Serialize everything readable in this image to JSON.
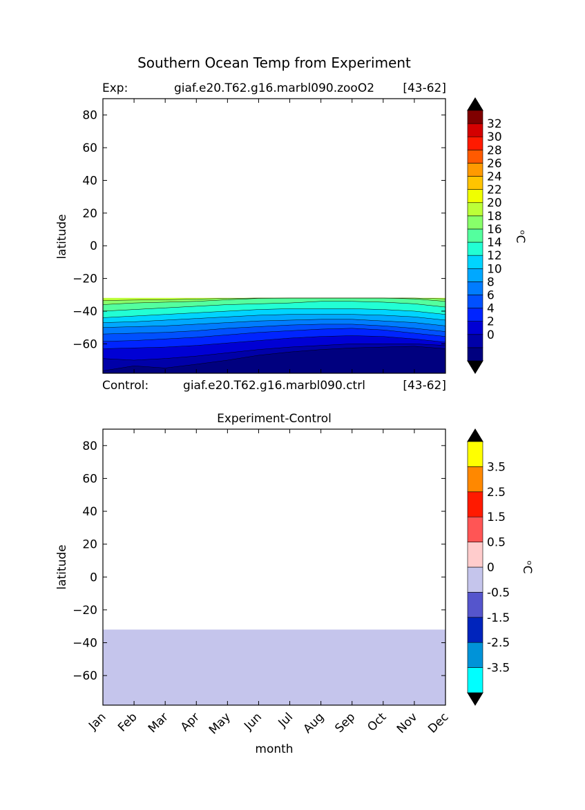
{
  "figure": {
    "title": "Southern Ocean Temp from Experiment"
  },
  "chart_data": [
    {
      "type": "contour",
      "panel": "experiment",
      "left_label": "Exp:",
      "case_name": "giaf.e20.T62.g16.marbl090.zooO2",
      "years": "[43-62]",
      "bottom_left_label": "Control:",
      "bottom_case_name": "giaf.e20.T62.g16.marbl090.ctrl",
      "bottom_years": "[43-62]",
      "ylabel": "latitude",
      "ylim": [
        -78,
        90
      ],
      "yticks": [
        "80",
        "60",
        "40",
        "20",
        "0",
        "−20",
        "−40",
        "−60"
      ],
      "ytick_values": [
        80,
        60,
        40,
        20,
        0,
        -20,
        -40,
        -60
      ],
      "x_months": [
        "Jan",
        "Feb",
        "Mar",
        "Apr",
        "May",
        "Jun",
        "Jul",
        "Aug",
        "Sep",
        "Oct",
        "Nov",
        "Dec"
      ],
      "data_lat_range": [
        -78,
        -32
      ],
      "contour_levels": [
        -2,
        0,
        2,
        4,
        6,
        8,
        10,
        12,
        14,
        16,
        18,
        20,
        22,
        24,
        26,
        28,
        30,
        32,
        34
      ],
      "isotherm_latitudes_by_month": {
        "0": [
          -76.5,
          -73.5,
          -74.8,
          -72.5,
          -70.0,
          -67.0,
          -65.0,
          -63.5,
          -62.5,
          -62.0,
          -61.5,
          -63.0
        ],
        "2": [
          -69.0,
          -70.0,
          -69.0,
          -67.5,
          -65.5,
          -63.5,
          -62.0,
          -61.0,
          -60.0,
          -60.0,
          -60.0,
          -61.0
        ],
        "4": [
          -63.0,
          -62.5,
          -62.0,
          -61.0,
          -59.5,
          -58.0,
          -56.5,
          -55.5,
          -55.0,
          -55.5,
          -57.0,
          -59.0
        ],
        "6": [
          -58.5,
          -58.0,
          -57.0,
          -56.0,
          -54.5,
          -53.0,
          -52.0,
          -51.0,
          -50.5,
          -51.5,
          -53.5,
          -55.5
        ],
        "8": [
          -54.0,
          -53.5,
          -53.0,
          -52.0,
          -50.5,
          -49.5,
          -48.5,
          -48.0,
          -48.0,
          -49.0,
          -50.5,
          -52.5
        ],
        "10": [
          -50.0,
          -49.5,
          -49.0,
          -48.0,
          -47.0,
          -46.0,
          -45.5,
          -45.0,
          -45.0,
          -46.0,
          -47.0,
          -49.0
        ],
        "12": [
          -47.0,
          -46.5,
          -45.5,
          -44.5,
          -43.5,
          -42.5,
          -42.0,
          -42.0,
          -42.0,
          -42.5,
          -43.5,
          -45.5
        ],
        "14": [
          -44.0,
          -43.0,
          -42.0,
          -41.0,
          -40.0,
          -39.0,
          -38.5,
          -38.5,
          -38.5,
          -39.0,
          -40.0,
          -42.0
        ],
        "16": [
          -40.0,
          -39.0,
          -38.0,
          -37.0,
          -36.0,
          -35.5,
          -35.0,
          -34.0,
          -34.0,
          -34.5,
          -35.5,
          -37.5
        ],
        "18": [
          -36.0,
          -35.0,
          -34.5,
          -34.0,
          -33.0,
          -32.2,
          -31.8,
          -31.5,
          -31.5,
          -31.8,
          -32.5,
          -34.0
        ],
        "20": [
          -33.5,
          -33.2,
          -33.0,
          -32.6,
          -32.2,
          -31.9,
          -31.7,
          -31.6,
          -31.6,
          -31.7,
          -32.0,
          -32.5
        ]
      },
      "colorbar": {
        "label": "ᵒC",
        "tick_labels": [
          "32",
          "30",
          "28",
          "26",
          "24",
          "22",
          "20",
          "18",
          "16",
          "14",
          "12",
          "10",
          "8",
          "6",
          "4",
          "2",
          "0"
        ],
        "tick_values": [
          32,
          30,
          28,
          26,
          24,
          22,
          20,
          18,
          16,
          14,
          12,
          10,
          8,
          6,
          4,
          2,
          0
        ],
        "colors": [
          "#00007f",
          "#0000a8",
          "#0000d4",
          "#0024ff",
          "#0050ff",
          "#007cff",
          "#00a8ff",
          "#00d4ff",
          "#22ffd4",
          "#54ff9e",
          "#88ff6a",
          "#bcff38",
          "#f0ff00",
          "#ffc400",
          "#ff9a00",
          "#ff5a00",
          "#ff1a00",
          "#d40000",
          "#7f0000"
        ],
        "under_color": "#000000",
        "over_color": "#000000"
      }
    },
    {
      "type": "contour",
      "panel": "difference",
      "title": "Experiment-Control",
      "xlabel": "month",
      "ylabel": "latitude",
      "ylim": [
        -78,
        90
      ],
      "yticks": [
        "80",
        "60",
        "40",
        "20",
        "0",
        "−20",
        "−40",
        "−60"
      ],
      "ytick_values": [
        80,
        60,
        40,
        20,
        0,
        -20,
        -40,
        -60
      ],
      "x_months": [
        "Jan",
        "Feb",
        "Mar",
        "Apr",
        "May",
        "Jun",
        "Jul",
        "Aug",
        "Sep",
        "Oct",
        "Nov",
        "Dec"
      ],
      "data_lat_range": [
        -78,
        -32
      ],
      "fill_value_range": [
        -0.5,
        0
      ],
      "fill_color": "#c5c5ec",
      "colorbar": {
        "label": "ᵒC",
        "tick_labels": [
          "3.5",
          "2.5",
          "1.5",
          "0.5",
          "0",
          "-0.5",
          "-1.5",
          "-2.5",
          "-3.5"
        ],
        "colors": [
          "#00ffff",
          "#0093d8",
          "#0024bc",
          "#5555cc",
          "#c5c5ec",
          "#ffcccc",
          "#ff5555",
          "#ff1a00",
          "#ff8800",
          "#ffff00"
        ],
        "under_color": "#000000",
        "over_color": "#000000"
      }
    }
  ]
}
